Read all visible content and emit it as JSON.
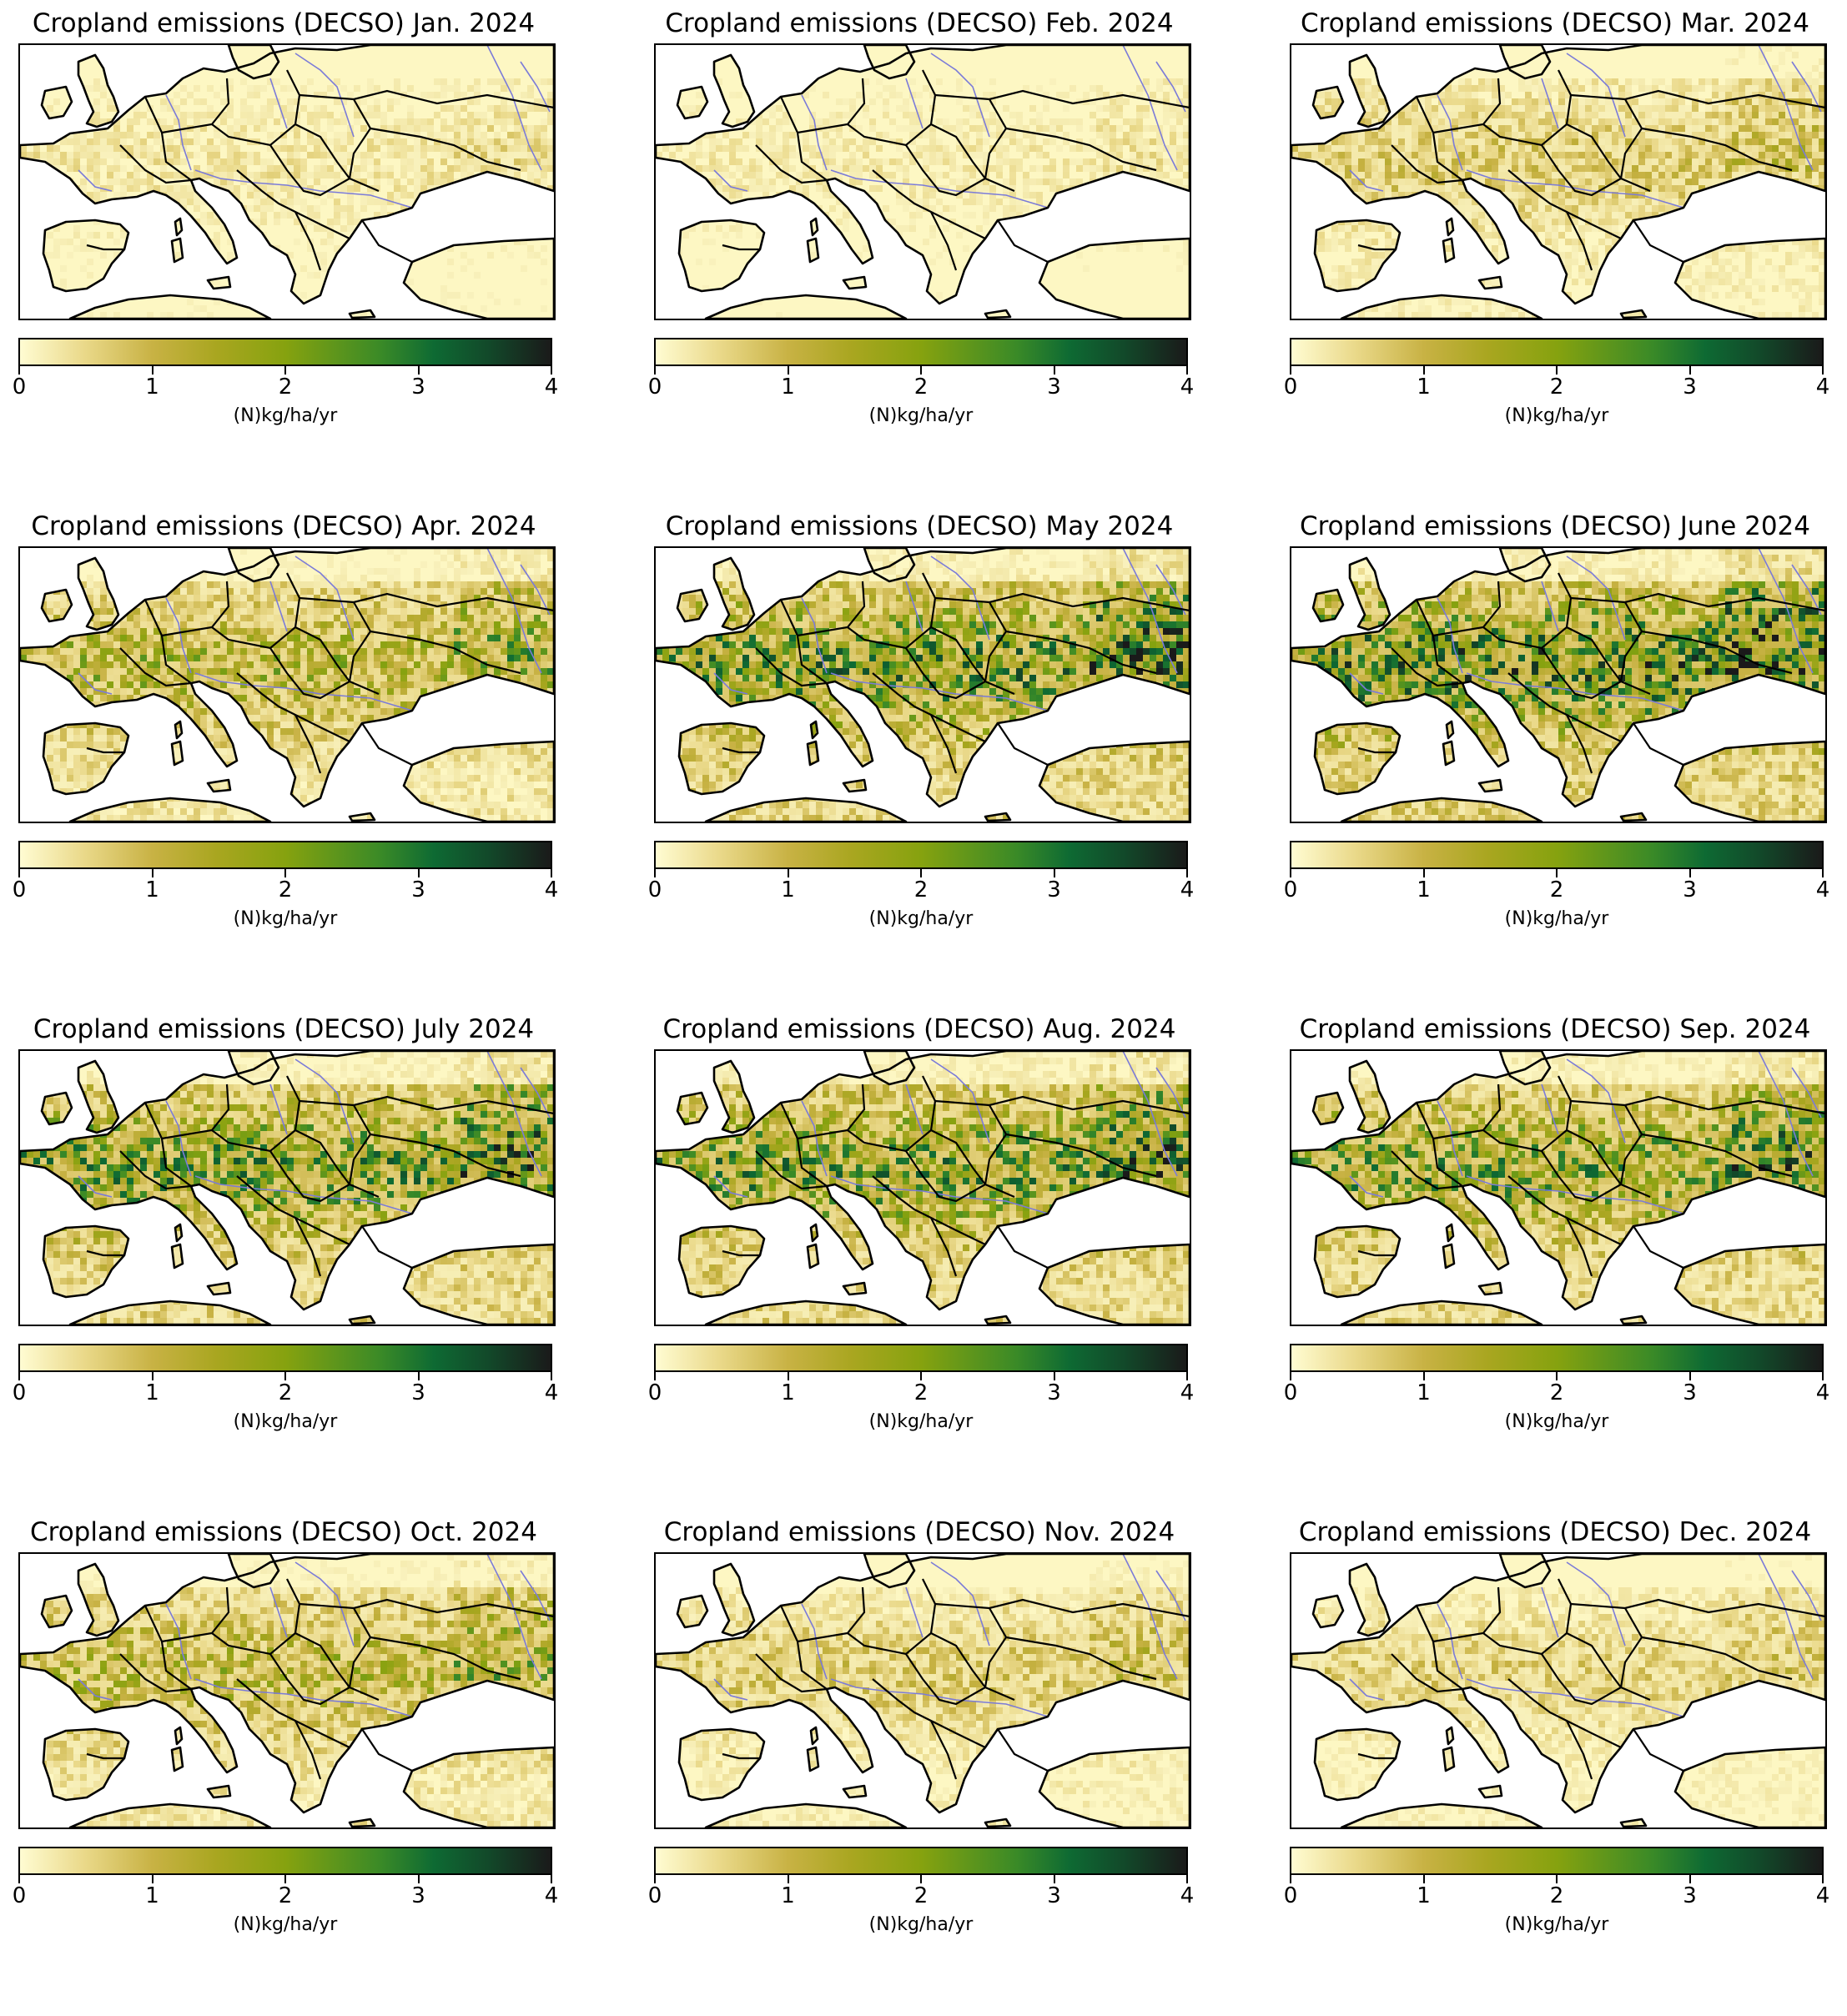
{
  "panels": [
    {
      "title": "Cropland emissions (DECSO) Jan. 2024",
      "level": 0.15
    },
    {
      "title": "Cropland emissions (DECSO) Feb. 2024",
      "level": 0.12
    },
    {
      "title": "Cropland emissions (DECSO) Mar. 2024",
      "level": 0.3
    },
    {
      "title": "Cropland emissions (DECSO) Apr. 2024",
      "level": 0.55
    },
    {
      "title": "Cropland emissions (DECSO) May 2024",
      "level": 0.85
    },
    {
      "title": "Cropland emissions (DECSO) June 2024",
      "level": 0.95
    },
    {
      "title": "Cropland emissions (DECSO) July 2024",
      "level": 0.8
    },
    {
      "title": "Cropland emissions (DECSO) Aug. 2024",
      "level": 0.8
    },
    {
      "title": "Cropland emissions (DECSO) Sep. 2024",
      "level": 0.75
    },
    {
      "title": "Cropland emissions (DECSO) Oct. 2024",
      "level": 0.5
    },
    {
      "title": "Cropland emissions (DECSO) Nov. 2024",
      "level": 0.3
    },
    {
      "title": "Cropland emissions (DECSO) Dec. 2024",
      "level": 0.25
    }
  ],
  "colorbar": {
    "min": 0,
    "max": 4,
    "ticks": [
      "0",
      "1",
      "2",
      "3",
      "4"
    ],
    "unit": "(N)kg/ha/yr",
    "colors": [
      "#fffcd2",
      "#ead98a",
      "#c8b244",
      "#a9a620",
      "#86a20f",
      "#3a8a27",
      "#0e6a33",
      "#124a2a",
      "#1a1a1a"
    ]
  },
  "map_colors": {
    "sea": "#ffffff",
    "land_base": "#fdf7c3",
    "borders": "#000000",
    "rivers": "#7b7bd8"
  }
}
